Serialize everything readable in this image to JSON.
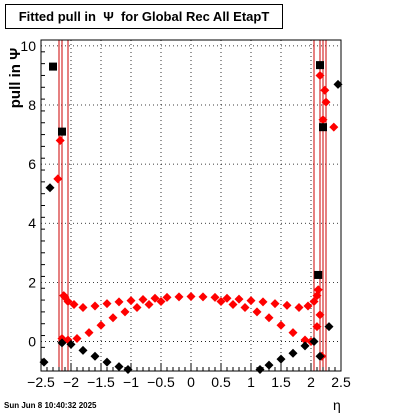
{
  "title": "Fitted pull in  Ψ  for Global Rec All EtapT",
  "footer_text": "Sun Jun  8 10:40:32 2025",
  "colors": {
    "red": "#ff0000",
    "black": "#000000",
    "vline": "#cc0000"
  },
  "chart_data": {
    "type": "scatter",
    "title": "Fitted pull in  Ψ  for Global Rec All EtapT",
    "xlabel": "η",
    "ylabel": "pull in  Ψ",
    "xlim": [
      -2.5,
      2.5
    ],
    "ylim": [
      -1,
      10.2
    ],
    "x_ticks": [
      -2.5,
      -2,
      -1.5,
      -1,
      -0.5,
      0,
      0.5,
      1,
      1.5,
      2,
      2.5
    ],
    "x_tick_labels": [
      "−2.5",
      "−2",
      "−1.5",
      "−1",
      "−0.5",
      "0",
      "0.5",
      "1",
      "1.5",
      "2",
      "2.5"
    ],
    "y_ticks": [
      0,
      2,
      4,
      6,
      8,
      10
    ],
    "y_tick_labels": [
      "0",
      "2",
      "4",
      "6",
      "8",
      "10"
    ],
    "grid": true,
    "vertical_lines": [
      -2.2,
      -2.15,
      -2.05,
      2.05,
      2.15,
      2.2,
      2.25
    ],
    "series": [
      {
        "color": "#ff0000",
        "marker": "diamond",
        "points": [
          [
            -2.18,
            6.8
          ],
          [
            -2.22,
            5.5
          ],
          [
            -2.12,
            1.55
          ],
          [
            -2.1,
            1.5
          ],
          [
            -2.05,
            1.35
          ],
          [
            -1.95,
            1.25
          ],
          [
            -1.8,
            1.15
          ],
          [
            -1.6,
            1.2
          ],
          [
            -1.4,
            1.28
          ],
          [
            -1.2,
            1.34
          ],
          [
            -1.0,
            1.38
          ],
          [
            -0.8,
            1.42
          ],
          [
            -0.6,
            1.46
          ],
          [
            -0.4,
            1.49
          ],
          [
            -0.2,
            1.51
          ],
          [
            0.0,
            1.52
          ],
          [
            0.2,
            1.51
          ],
          [
            0.4,
            1.49
          ],
          [
            0.6,
            1.46
          ],
          [
            0.8,
            1.43
          ],
          [
            1.0,
            1.38
          ],
          [
            1.2,
            1.34
          ],
          [
            1.4,
            1.28
          ],
          [
            1.6,
            1.22
          ],
          [
            1.8,
            1.15
          ],
          [
            1.95,
            1.2
          ],
          [
            2.05,
            1.35
          ],
          [
            2.1,
            1.55
          ],
          [
            2.12,
            1.75
          ],
          [
            -2.15,
            0.1
          ],
          [
            -2.05,
            0.05
          ],
          [
            -1.9,
            0.1
          ],
          [
            -1.7,
            0.3
          ],
          [
            -1.5,
            0.55
          ],
          [
            -1.3,
            0.8
          ],
          [
            -1.1,
            1.0
          ],
          [
            -0.9,
            1.15
          ],
          [
            -0.7,
            1.25
          ],
          [
            -0.5,
            1.35
          ],
          [
            0.5,
            1.35
          ],
          [
            0.7,
            1.25
          ],
          [
            0.9,
            1.15
          ],
          [
            1.1,
            1.0
          ],
          [
            1.3,
            0.8
          ],
          [
            1.5,
            0.55
          ],
          [
            1.7,
            0.3
          ],
          [
            1.9,
            0.05
          ],
          [
            2.0,
            0.0
          ],
          [
            2.1,
            0.5
          ],
          [
            2.15,
            0.9
          ],
          [
            2.18,
            -0.5
          ],
          [
            2.2,
            7.5
          ],
          [
            2.23,
            8.5
          ],
          [
            2.25,
            8.1
          ],
          [
            2.38,
            7.25
          ],
          [
            2.15,
            9.0
          ]
        ]
      },
      {
        "color": "#000000",
        "marker": "diamond",
        "points": [
          [
            -2.45,
            -0.7
          ],
          [
            -2.35,
            5.2
          ],
          [
            -2.15,
            -0.05
          ],
          [
            -2.0,
            -0.1
          ],
          [
            -1.8,
            -0.3
          ],
          [
            -1.6,
            -0.5
          ],
          [
            -1.4,
            -0.7
          ],
          [
            -1.2,
            -0.85
          ],
          [
            -1.05,
            -0.95
          ],
          [
            1.15,
            -0.95
          ],
          [
            1.3,
            -0.8
          ],
          [
            1.5,
            -0.6
          ],
          [
            1.7,
            -0.4
          ],
          [
            1.9,
            -0.15
          ],
          [
            2.05,
            0.0
          ],
          [
            2.15,
            -0.5
          ],
          [
            2.3,
            0.5
          ],
          [
            2.45,
            8.7
          ]
        ]
      },
      {
        "color": "#000000",
        "marker": "square",
        "points": [
          [
            -2.3,
            9.3
          ],
          [
            -2.15,
            7.1
          ],
          [
            2.15,
            9.35
          ],
          [
            2.12,
            2.25
          ],
          [
            2.2,
            7.25
          ]
        ]
      }
    ]
  }
}
